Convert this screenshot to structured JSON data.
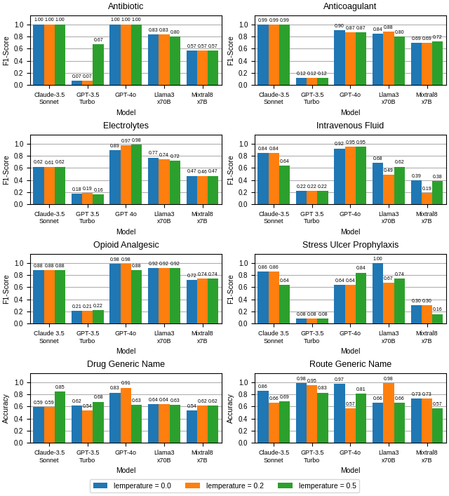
{
  "chart_data": [
    {
      "type": "bar",
      "title": "Antibiotic",
      "xlabel": "Model",
      "ylabel": "F1-Score",
      "categories": [
        "Claude-3.5\nSonnet",
        "GPT-3.5\nTurbo",
        "GPT-4o",
        "Llama3\nx70B",
        "Mixtral8\nx7B"
      ],
      "series": [
        {
          "name": "lemperature = 0.0",
          "values": [
            1.0,
            0.07,
            1.0,
            0.83,
            0.57
          ],
          "value_labels": [
            "1.00",
            "0.07",
            "1.00",
            "0.83",
            "0.57"
          ]
        },
        {
          "name": "lemperature = 0.2",
          "values": [
            1.0,
            0.07,
            1.0,
            0.83,
            0.57
          ],
          "value_labels": [
            "1.00",
            "0.07",
            "1.00",
            "0.83",
            "0.57"
          ]
        },
        {
          "name": "lemperature = 0.5",
          "values": [
            1.0,
            0.67,
            1.0,
            0.8,
            0.57
          ],
          "value_labels": [
            "1.00",
            "0.67",
            "1.00",
            "0.80",
            "0.57"
          ]
        }
      ],
      "ylim": [
        0,
        1.15
      ],
      "yticks": [
        {
          "value": 0.0,
          "label": "0.0"
        },
        {
          "value": 0.2,
          "label": "0.2"
        },
        {
          "value": 0.4,
          "label": "0.4"
        },
        {
          "value": 0.6,
          "label": "0.6"
        },
        {
          "value": 0.8,
          "label": "0.8"
        },
        {
          "value": 1.0,
          "label": "1.0"
        }
      ],
      "grid": true,
      "data_labels": true
    },
    {
      "type": "bar",
      "title": "Anticoagulant",
      "xlabel": "Model",
      "ylabel": "F1-Score",
      "categories": [
        "Claude-3.5\nSonnet",
        "GPT-3.5\nTurbo",
        "GPT-4o",
        "Llama3\nx70B",
        "Mixtral8\nx7B"
      ],
      "series": [
        {
          "name": "lemperature = 0.0",
          "values": [
            0.99,
            0.12,
            0.9,
            0.84,
            0.69
          ],
          "value_labels": [
            "0.99",
            "0.12",
            "0.90",
            "0.84",
            "0.69"
          ]
        },
        {
          "name": "lemperature = 0.2",
          "values": [
            0.99,
            0.12,
            0.87,
            0.88,
            0.69
          ],
          "value_labels": [
            "0.99",
            "0.12",
            "0.87",
            "0.88",
            "0.69"
          ]
        },
        {
          "name": "lemperature = 0.5",
          "values": [
            0.99,
            0.12,
            0.87,
            0.8,
            0.72
          ],
          "value_labels": [
            "0.99",
            "0.12",
            "0.87",
            "0.80",
            "0.72"
          ]
        }
      ],
      "ylim": [
        0,
        1.15
      ],
      "yticks": [
        {
          "value": 0.0,
          "label": "0.0"
        },
        {
          "value": 0.2,
          "label": "0.2"
        },
        {
          "value": 0.4,
          "label": "0.4"
        },
        {
          "value": 0.6,
          "label": "0.6"
        },
        {
          "value": 0.8,
          "label": "0.8"
        },
        {
          "value": 1.0,
          "label": "1.0"
        }
      ],
      "grid": true,
      "data_labels": true
    },
    {
      "type": "bar",
      "title": "Electrolytes",
      "xlabel": "Model",
      "ylabel": "F1-Score",
      "categories": [
        "Claude-3.5\nSonnet",
        "GPT 3.5\nTurbo",
        "GPT 4o",
        "Llama3\nx70B",
        "Mixtral8\nx7B"
      ],
      "series": [
        {
          "name": "lemperature = 0.0",
          "values": [
            0.62,
            0.18,
            0.89,
            0.77,
            0.47
          ],
          "value_labels": [
            "0.62",
            "0.18",
            "0.89",
            "0.77",
            "0.47"
          ]
        },
        {
          "name": "lemperature = 0.2",
          "values": [
            0.61,
            0.19,
            0.97,
            0.74,
            0.46
          ],
          "value_labels": [
            "0.61",
            "0.19",
            "0.97",
            "0.74",
            "0.46"
          ]
        },
        {
          "name": "lemperature = 0.5",
          "values": [
            0.62,
            0.16,
            0.98,
            0.72,
            0.47
          ],
          "value_labels": [
            "0.62",
            "0.16",
            "0.98",
            "0.72",
            "0.47"
          ]
        }
      ],
      "ylim": [
        0,
        1.15
      ],
      "yticks": [
        {
          "value": 0.0,
          "label": "0.0"
        },
        {
          "value": 0.2,
          "label": "0.2"
        },
        {
          "value": 0.4,
          "label": "0.4"
        },
        {
          "value": 0.6,
          "label": "0.6"
        },
        {
          "value": 0.8,
          "label": "0.8"
        },
        {
          "value": 1.0,
          "label": "1.0"
        }
      ],
      "grid": true,
      "data_labels": true
    },
    {
      "type": "bar",
      "title": "Intravenous Fluid",
      "xlabel": "Model",
      "ylabel": "F1-Score",
      "categories": [
        "Claude-3.5\nSonnet",
        "GPT 3.5\nTurbo",
        "GPT-4o",
        "Llama3\nx70B",
        "Mixtral8\nx7B"
      ],
      "series": [
        {
          "name": "lemperature = 0.0",
          "values": [
            0.84,
            0.22,
            0.92,
            0.68,
            0.39
          ],
          "value_labels": [
            "0.84",
            "0.22",
            "0.92",
            "0.68",
            "0.39"
          ]
        },
        {
          "name": "lemperature = 0.2",
          "values": [
            0.84,
            0.22,
            0.95,
            0.49,
            0.19
          ],
          "value_labels": [
            "0.84",
            "0.22",
            "0.95",
            "0.49",
            "0.19"
          ]
        },
        {
          "name": "lemperature = 0.5",
          "values": [
            0.64,
            0.22,
            0.95,
            0.62,
            0.38
          ],
          "value_labels": [
            "0.64",
            "0.22",
            "0.95",
            "0.62",
            "0.38"
          ]
        }
      ],
      "ylim": [
        0,
        1.15
      ],
      "yticks": [
        {
          "value": 0.0,
          "label": "0.0"
        },
        {
          "value": 0.2,
          "label": "0.2"
        },
        {
          "value": 0.4,
          "label": "0.4"
        },
        {
          "value": 0.6,
          "label": "0.6"
        },
        {
          "value": 0.8,
          "label": "0.8"
        },
        {
          "value": 1.0,
          "label": "1.0"
        }
      ],
      "grid": true,
      "data_labels": true
    },
    {
      "type": "bar",
      "title": "Opioid Analgesic",
      "xlabel": "Model",
      "ylabel": "F1-Score",
      "categories": [
        "Claude 3.5\nSonnet",
        "GPT-3.5\nTurbo",
        "GPT-4o",
        "Llama3\nx70B",
        "Mixtral8\nx7B"
      ],
      "series": [
        {
          "name": "lemperature = 0.0",
          "values": [
            0.88,
            0.21,
            0.98,
            0.92,
            0.72
          ],
          "value_labels": [
            "0.88",
            "0.21",
            "0.98",
            "0.92",
            "0.72"
          ]
        },
        {
          "name": "lemperature = 0.2",
          "values": [
            0.88,
            0.21,
            0.98,
            0.92,
            0.74
          ],
          "value_labels": [
            "0.88",
            "0.21",
            "0.98",
            "0.92",
            "0.74"
          ]
        },
        {
          "name": "lemperature = 0.5",
          "values": [
            0.88,
            0.22,
            0.88,
            0.92,
            0.74
          ],
          "value_labels": [
            "0.88",
            "0.22",
            "0.88",
            "0.92",
            "0.74"
          ]
        }
      ],
      "ylim": [
        0,
        1.15
      ],
      "yticks": [
        {
          "value": 0.0,
          "label": "0.0"
        },
        {
          "value": 0.2,
          "label": "0.2"
        },
        {
          "value": 0.4,
          "label": "0.4"
        },
        {
          "value": 0.6,
          "label": "0.6"
        },
        {
          "value": 0.8,
          "label": "0.8"
        },
        {
          "value": 1.0,
          "label": "1.0"
        }
      ],
      "grid": true,
      "data_labels": true
    },
    {
      "type": "bar",
      "title": "Stress Ulcer Prophylaxis",
      "xlabel": "Model",
      "ylabel": "F1-Score",
      "categories": [
        "Claude 3.5\nSonnet",
        "GPT-3.5\nTurbo",
        "GPT-4o",
        "Llama3\nx70B",
        "Mixtral8\nx7B"
      ],
      "series": [
        {
          "name": "lemperature = 0.0",
          "values": [
            0.86,
            0.08,
            0.64,
            1.0,
            0.3
          ],
          "value_labels": [
            "0.86",
            "0.08",
            "0.64",
            "1.00",
            "0.30"
          ]
        },
        {
          "name": "lemperature = 0.2",
          "values": [
            0.86,
            0.08,
            0.64,
            0.67,
            0.3
          ],
          "value_labels": [
            "0.86",
            "0.08",
            "0.64",
            "0.67",
            "0.30"
          ]
        },
        {
          "name": "lemperature = 0.5",
          "values": [
            0.64,
            0.08,
            0.84,
            0.74,
            0.16
          ],
          "value_labels": [
            "0.64",
            "0.08",
            "0.84",
            "0.74",
            "0.16"
          ]
        }
      ],
      "ylim": [
        0,
        1.15
      ],
      "yticks": [
        {
          "value": 0.0,
          "label": "0.0"
        },
        {
          "value": 0.2,
          "label": "0.2"
        },
        {
          "value": 0.4,
          "label": "0.4"
        },
        {
          "value": 0.6,
          "label": "0.6"
        },
        {
          "value": 0.8,
          "label": "0.8"
        },
        {
          "value": 1.0,
          "label": "1.0"
        }
      ],
      "grid": true,
      "data_labels": true
    },
    {
      "type": "bar",
      "title": "Drug Generic Name",
      "xlabel": "Model",
      "ylabel": "Accuracy",
      "categories": [
        "Claude-3.5\nSonnet",
        "GPT-3.5\nTurbo",
        "GPT-4o",
        "Llama3\nx70B",
        "Mixtral8\nx7B"
      ],
      "series": [
        {
          "name": "lemperature = 0.0",
          "values": [
            0.59,
            0.62,
            0.83,
            0.64,
            0.54
          ],
          "value_labels": [
            "0.59",
            "0.62",
            "0.83",
            "0.64",
            "0.54"
          ]
        },
        {
          "name": "lemperature = 0.2",
          "values": [
            0.59,
            0.54,
            0.91,
            0.64,
            0.62
          ],
          "value_labels": [
            "0.59",
            "0.54",
            "0.91",
            "0.64",
            "0.62"
          ]
        },
        {
          "name": "lemperature = 0.5",
          "values": [
            0.85,
            0.68,
            0.63,
            0.63,
            0.62
          ],
          "value_labels": [
            "0.85",
            "0.68",
            "0.63",
            "0.63",
            "0.62"
          ]
        }
      ],
      "ylim": [
        0,
        1.15
      ],
      "yticks": [
        {
          "value": 0.0,
          "label": "0.0"
        },
        {
          "value": 0.2,
          "label": "0.2"
        },
        {
          "value": 0.4,
          "label": "0.4"
        },
        {
          "value": 0.6,
          "label": "0.6"
        },
        {
          "value": 0.8,
          "label": "0.8"
        },
        {
          "value": 1.0,
          "label": "1.0"
        }
      ],
      "grid": true,
      "data_labels": true
    },
    {
      "type": "bar",
      "title": "Route Generic Name",
      "xlabel": "Model",
      "ylabel": "Accuracy",
      "categories": [
        "Claude-3.5\nSonnet",
        "GPT-3.5\nTurbo",
        "GPT-4o",
        "Llama3\nx70B",
        "Mixtral8\nx7B"
      ],
      "series": [
        {
          "name": "lemperature = 0.0",
          "values": [
            0.86,
            0.98,
            0.97,
            0.66,
            0.73
          ],
          "value_labels": [
            "0.86",
            "0.98",
            "0.97",
            "0.66",
            "0.73"
          ]
        },
        {
          "name": "lemperature = 0.2",
          "values": [
            0.66,
            0.95,
            0.57,
            0.98,
            0.73
          ],
          "value_labels": [
            "0.66",
            "0.95",
            "0.57",
            "0.98",
            "0.73"
          ]
        },
        {
          "name": "lemperature = 0.5",
          "values": [
            0.69,
            0.83,
            0.81,
            0.66,
            0.57
          ],
          "value_labels": [
            "0.69",
            "0.83",
            "0.81",
            "0.66",
            "0.57"
          ]
        }
      ],
      "ylim": [
        0,
        1.15
      ],
      "yticks": [
        {
          "value": 0.0,
          "label": "0.0"
        },
        {
          "value": 0.2,
          "label": "0.2"
        },
        {
          "value": 0.4,
          "label": "0.4"
        },
        {
          "value": 0.6,
          "label": "0.6"
        },
        {
          "value": 0.8,
          "label": "0.8"
        },
        {
          "value": 1.0,
          "label": "1.0"
        }
      ],
      "grid": true,
      "data_labels": true,
      "legend": "lower center"
    }
  ]
}
